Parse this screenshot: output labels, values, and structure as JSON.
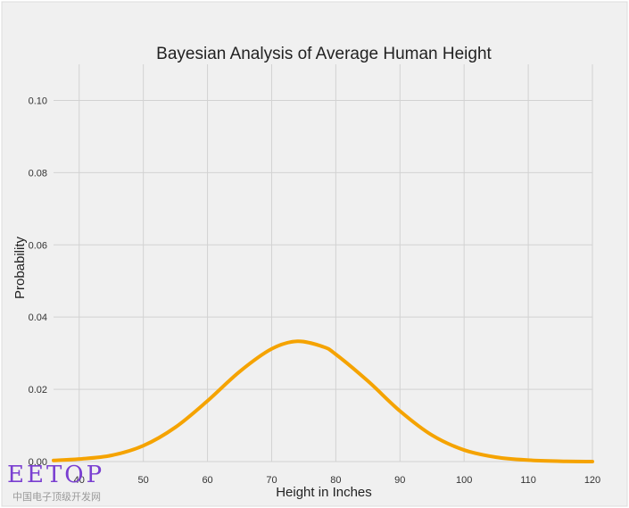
{
  "chart_data": {
    "type": "line",
    "title": "Bayesian Analysis of Average Human Height",
    "xlabel": "Height in Inches",
    "ylabel": "Probability",
    "xlim": [
      36,
      120
    ],
    "ylim": [
      0,
      0.11
    ],
    "xticks": [
      40,
      50,
      60,
      70,
      80,
      90,
      100,
      110,
      120
    ],
    "yticks": [
      0.0,
      0.02,
      0.04,
      0.06,
      0.08,
      0.1
    ],
    "ytick_labels": [
      "0.00",
      "0.02",
      "0.04",
      "0.06",
      "0.08",
      "0.10"
    ],
    "grid": true,
    "series": [
      {
        "color": "#f5a300",
        "x": [
          36,
          40,
          45,
          50,
          55,
          60,
          65,
          70,
          74,
          78,
          80,
          85,
          90,
          95,
          100,
          105,
          110,
          115,
          120
        ],
        "y": [
          0.0003,
          0.0007,
          0.0017,
          0.0044,
          0.0095,
          0.0168,
          0.0249,
          0.0312,
          0.0333,
          0.0318,
          0.0297,
          0.0223,
          0.014,
          0.0073,
          0.0032,
          0.0012,
          0.0004,
          0.0001,
          0.0
        ]
      }
    ]
  },
  "watermark": {
    "logo_text": "EETOP",
    "subtitle": "中国电子顶级开发网"
  }
}
